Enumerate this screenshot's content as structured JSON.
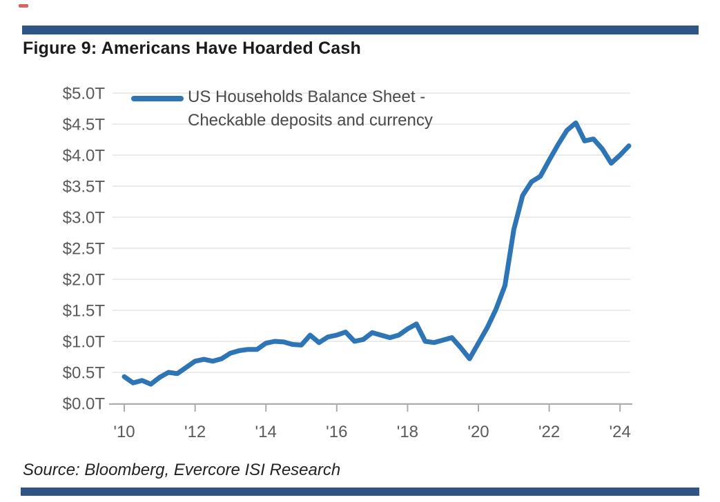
{
  "figure": {
    "title": "Figure 9: Americans Have Hoarded Cash",
    "source": "Source: Bloomberg, Evercore ISI Research"
  },
  "legend": {
    "line1": "US Households Balance Sheet -",
    "line2": "Checkable deposits and currency"
  },
  "colors": {
    "line": "#2e75b6",
    "divider_bar": "#2f5586",
    "axis_text": "#5a5a5a",
    "gridline": "#ebebeb",
    "axis_line": "#ababab",
    "artifact_red": "#cf4a41"
  },
  "chart_data": {
    "type": "line",
    "title": "Figure 9: Americans Have Hoarded Cash",
    "xlabel": "",
    "ylabel": "",
    "ylim": [
      0.0,
      5.0
    ],
    "xlim": [
      2009.9,
      2024.6
    ],
    "grid": true,
    "legend_position": "top-left",
    "ytick_labels": [
      "$5.0T",
      "$4.5T",
      "$4.0T",
      "$3.5T",
      "$3.0T",
      "$2.5T",
      "$2.0T",
      "$1.5T",
      "$1.0T",
      "$0.5T",
      "$0.0T"
    ],
    "ytick_values": [
      5.0,
      4.5,
      4.0,
      3.5,
      3.0,
      2.5,
      2.0,
      1.5,
      1.0,
      0.5,
      0.0
    ],
    "xtick_labels": [
      "'10",
      "'12",
      "'14",
      "'16",
      "'18",
      "'20",
      "'22",
      "'24"
    ],
    "xtick_years": [
      2010,
      2012,
      2014,
      2016,
      2018,
      2020,
      2022,
      2024
    ],
    "x_start_year": 2010,
    "x_step_years": 0.25,
    "units": "trillions of US dollars",
    "series": [
      {
        "name": "US Households Balance Sheet - Checkable deposits and currency",
        "values": [
          0.43,
          0.33,
          0.37,
          0.31,
          0.42,
          0.5,
          0.48,
          0.58,
          0.68,
          0.71,
          0.68,
          0.72,
          0.81,
          0.85,
          0.87,
          0.87,
          0.97,
          1.0,
          0.99,
          0.95,
          0.94,
          1.1,
          0.98,
          1.07,
          1.1,
          1.15,
          1.0,
          1.03,
          1.14,
          1.1,
          1.06,
          1.1,
          1.2,
          1.28,
          1.0,
          0.98,
          1.02,
          1.06,
          0.9,
          0.72,
          0.97,
          1.22,
          1.52,
          1.9,
          2.8,
          3.35,
          3.57,
          3.66,
          3.92,
          4.17,
          4.4,
          4.52,
          4.23,
          4.26,
          4.1,
          3.87,
          4.0,
          4.15
        ]
      }
    ]
  }
}
